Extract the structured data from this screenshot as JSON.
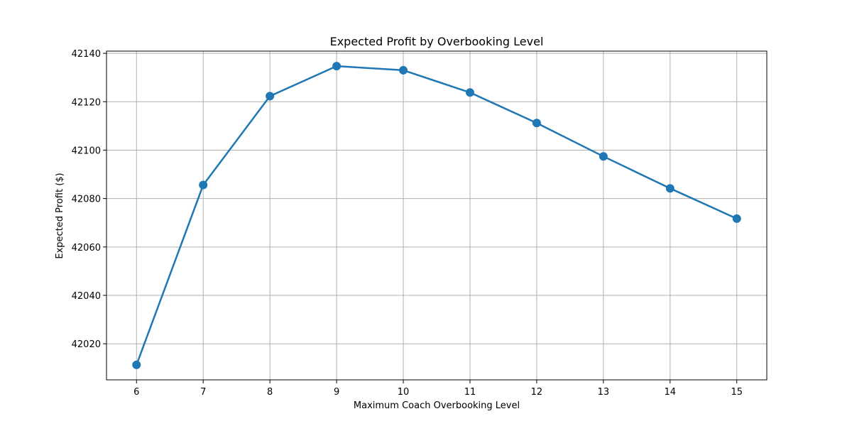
{
  "chart_data": {
    "type": "line",
    "title": "Expected Profit by Overbooking Level",
    "xlabel": "Maximum Coach Overbooking Level",
    "ylabel": "Expected Profit ($)",
    "x": [
      6,
      7,
      8,
      9,
      10,
      11,
      12,
      13,
      14,
      15
    ],
    "series": [
      {
        "values": [
          42011.3,
          42085.6,
          42122.3,
          42134.7,
          42133.0,
          42123.8,
          42111.2,
          42097.4,
          42084.2,
          42071.7
        ],
        "color": "#1f77b4",
        "marker": "circle"
      }
    ],
    "xlim": [
      5.55,
      15.45
    ],
    "ylim": [
      42005.1,
      42140.9
    ],
    "xticks": [
      6,
      7,
      8,
      9,
      10,
      11,
      12,
      13,
      14,
      15
    ],
    "yticks": [
      42020,
      42040,
      42060,
      42080,
      42100,
      42120,
      42140
    ],
    "grid": true,
    "colors": {
      "grid": "#b0b0b0",
      "axis": "#000000",
      "line": "#1f77b4"
    }
  }
}
